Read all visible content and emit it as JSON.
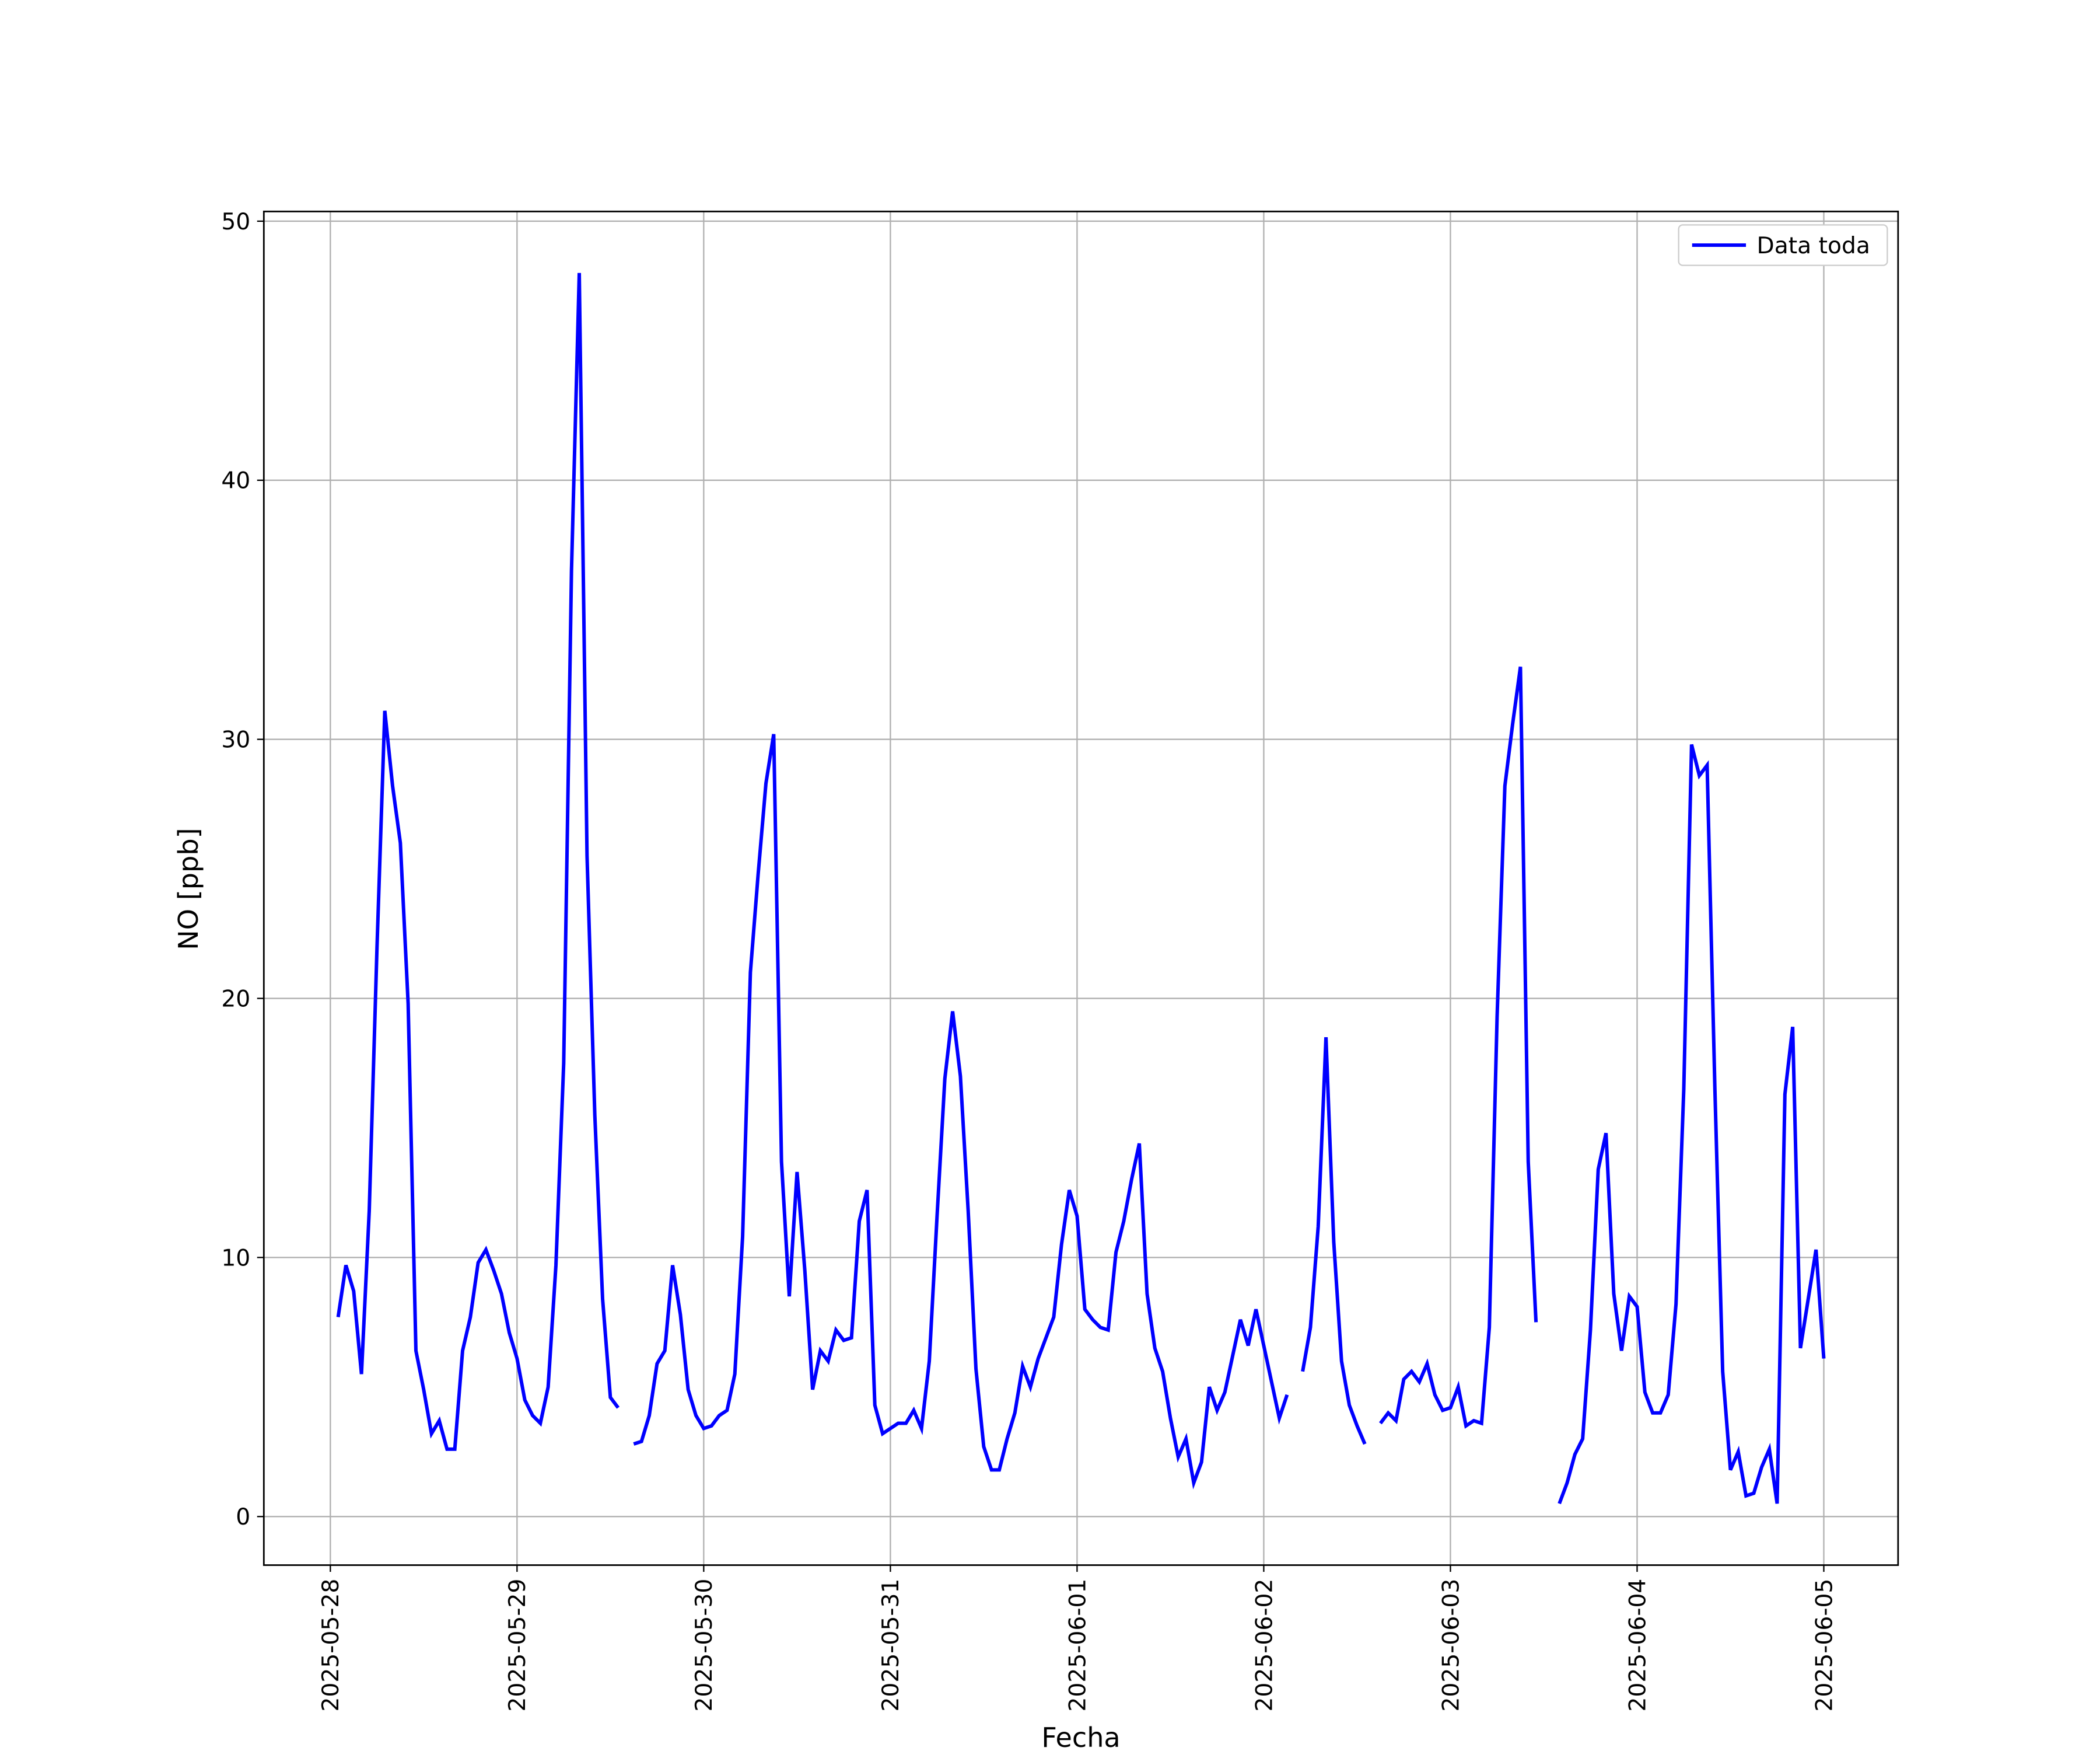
{
  "chart_data": {
    "type": "line",
    "xlabel": "Fecha",
    "ylabel": "NO [ppb]",
    "x": [
      "2025-05-28 01:00",
      "2025-05-28 02:00",
      "2025-05-28 03:00",
      "2025-05-28 04:00",
      "2025-05-28 05:00",
      "2025-05-28 06:00",
      "2025-05-28 07:00",
      "2025-05-28 08:00",
      "2025-05-28 09:00",
      "2025-05-28 10:00",
      "2025-05-28 11:00",
      "2025-05-28 12:00",
      "2025-05-28 13:00",
      "2025-05-28 14:00",
      "2025-05-28 15:00",
      "2025-05-28 16:00",
      "2025-05-28 17:00",
      "2025-05-28 18:00",
      "2025-05-28 19:00",
      "2025-05-28 20:00",
      "2025-05-28 21:00",
      "2025-05-28 22:00",
      "2025-05-28 23:00",
      "2025-05-29 00:00",
      "2025-05-29 01:00",
      "2025-05-29 02:00",
      "2025-05-29 03:00",
      "2025-05-29 04:00",
      "2025-05-29 05:00",
      "2025-05-29 06:00",
      "2025-05-29 07:00",
      "2025-05-29 08:00",
      "2025-05-29 09:00",
      "2025-05-29 10:00",
      "2025-05-29 11:00",
      "2025-05-29 12:00",
      "2025-05-29 13:00",
      "2025-05-29 14:00",
      "2025-05-29 15:00",
      "2025-05-29 16:00",
      "2025-05-29 17:00",
      "2025-05-29 18:00",
      "2025-05-29 19:00",
      "2025-05-29 20:00",
      "2025-05-29 21:00",
      "2025-05-29 22:00",
      "2025-05-29 23:00",
      "2025-05-30 00:00",
      "2025-05-30 01:00",
      "2025-05-30 02:00",
      "2025-05-30 03:00",
      "2025-05-30 04:00",
      "2025-05-30 05:00",
      "2025-05-30 06:00",
      "2025-05-30 07:00",
      "2025-05-30 08:00",
      "2025-05-30 09:00",
      "2025-05-30 10:00",
      "2025-05-30 11:00",
      "2025-05-30 12:00",
      "2025-05-30 13:00",
      "2025-05-30 14:00",
      "2025-05-30 15:00",
      "2025-05-30 16:00",
      "2025-05-30 17:00",
      "2025-05-30 18:00",
      "2025-05-30 19:00",
      "2025-05-30 20:00",
      "2025-05-30 21:00",
      "2025-05-30 22:00",
      "2025-05-30 23:00",
      "2025-05-31 00:00",
      "2025-05-31 01:00",
      "2025-05-31 02:00",
      "2025-05-31 03:00",
      "2025-05-31 04:00",
      "2025-05-31 05:00",
      "2025-05-31 06:00",
      "2025-05-31 07:00",
      "2025-05-31 08:00",
      "2025-05-31 09:00",
      "2025-05-31 10:00",
      "2025-05-31 11:00",
      "2025-05-31 12:00",
      "2025-05-31 13:00",
      "2025-05-31 14:00",
      "2025-05-31 15:00",
      "2025-05-31 16:00",
      "2025-05-31 17:00",
      "2025-05-31 18:00",
      "2025-05-31 19:00",
      "2025-05-31 20:00",
      "2025-05-31 21:00",
      "2025-05-31 22:00",
      "2025-05-31 23:00",
      "2025-06-01 00:00",
      "2025-06-01 01:00",
      "2025-06-01 02:00",
      "2025-06-01 03:00",
      "2025-06-01 04:00",
      "2025-06-01 05:00",
      "2025-06-01 06:00",
      "2025-06-01 07:00",
      "2025-06-01 08:00",
      "2025-06-01 09:00",
      "2025-06-01 10:00",
      "2025-06-01 11:00",
      "2025-06-01 12:00",
      "2025-06-01 13:00",
      "2025-06-01 14:00",
      "2025-06-01 15:00",
      "2025-06-01 16:00",
      "2025-06-01 17:00",
      "2025-06-01 18:00",
      "2025-06-01 19:00",
      "2025-06-01 20:00",
      "2025-06-01 21:00",
      "2025-06-01 22:00",
      "2025-06-01 23:00",
      "2025-06-02 00:00",
      "2025-06-02 01:00",
      "2025-06-02 02:00",
      "2025-06-02 03:00",
      "2025-06-02 04:00",
      "2025-06-02 05:00",
      "2025-06-02 06:00",
      "2025-06-02 07:00",
      "2025-06-02 08:00",
      "2025-06-02 09:00",
      "2025-06-02 10:00",
      "2025-06-02 11:00",
      "2025-06-02 12:00",
      "2025-06-02 13:00",
      "2025-06-02 14:00",
      "2025-06-02 15:00",
      "2025-06-02 16:00",
      "2025-06-02 17:00",
      "2025-06-02 18:00",
      "2025-06-02 19:00",
      "2025-06-02 20:00",
      "2025-06-02 21:00",
      "2025-06-02 22:00",
      "2025-06-02 23:00",
      "2025-06-03 00:00",
      "2025-06-03 01:00",
      "2025-06-03 02:00",
      "2025-06-03 03:00",
      "2025-06-03 04:00",
      "2025-06-03 05:00",
      "2025-06-03 06:00",
      "2025-06-03 07:00",
      "2025-06-03 08:00",
      "2025-06-03 09:00",
      "2025-06-03 10:00",
      "2025-06-03 11:00",
      "2025-06-03 12:00",
      "2025-06-03 13:00",
      "2025-06-03 14:00",
      "2025-06-03 15:00",
      "2025-06-03 16:00",
      "2025-06-03 17:00",
      "2025-06-03 18:00",
      "2025-06-03 19:00",
      "2025-06-03 20:00",
      "2025-06-03 21:00",
      "2025-06-03 22:00",
      "2025-06-03 23:00",
      "2025-06-04 00:00",
      "2025-06-04 01:00",
      "2025-06-04 02:00",
      "2025-06-04 03:00",
      "2025-06-04 04:00",
      "2025-06-04 05:00",
      "2025-06-04 06:00",
      "2025-06-04 07:00",
      "2025-06-04 08:00",
      "2025-06-04 09:00",
      "2025-06-04 10:00",
      "2025-06-04 11:00",
      "2025-06-04 12:00",
      "2025-06-04 13:00",
      "2025-06-04 14:00",
      "2025-06-04 15:00",
      "2025-06-04 16:00",
      "2025-06-04 17:00",
      "2025-06-04 18:00",
      "2025-06-04 19:00",
      "2025-06-04 20:00",
      "2025-06-04 21:00",
      "2025-06-04 22:00",
      "2025-06-04 23:00",
      "2025-06-05 00:00"
    ],
    "series": [
      {
        "name": "Data toda",
        "color": "#0000ff",
        "values": [
          7.7,
          9.7,
          8.7,
          5.5,
          11.8,
          22,
          31.1,
          28.2,
          26,
          19.8,
          6.4,
          4.9,
          3.2,
          3.7,
          2.6,
          2.6,
          6.4,
          7.7,
          9.8,
          10.3,
          9.5,
          8.6,
          7.1,
          6.1,
          4.5,
          3.9,
          3.6,
          5.0,
          9.7,
          17.5,
          36.5,
          48,
          25.5,
          15.5,
          8.4,
          4.6,
          4.2,
          null,
          2.8,
          2.9,
          3.9,
          5.9,
          6.4,
          9.7,
          7.8,
          4.9,
          3.9,
          3.4,
          3.5,
          3.9,
          4.1,
          5.5,
          10.8,
          21,
          24.8,
          28.3,
          30.2,
          13.7,
          8.5,
          13.3,
          9.5,
          4.9,
          6.4,
          6.0,
          7.2,
          6.8,
          6.9,
          11.4,
          12.6,
          4.3,
          3.2,
          3.4,
          3.6,
          3.6,
          4.1,
          3.4,
          6.0,
          11.6,
          16.9,
          19.5,
          17.0,
          11.8,
          5.7,
          2.7,
          1.8,
          1.8,
          3.0,
          4.0,
          5.8,
          5.0,
          6.1,
          6.9,
          7.7,
          10.5,
          12.6,
          11.6,
          8.0,
          7.6,
          7.3,
          7.2,
          10.2,
          11.4,
          13.0,
          14.4,
          8.6,
          6.5,
          5.6,
          3.8,
          2.3,
          3.0,
          1.3,
          2.1,
          5.0,
          4.1,
          4.8,
          6.2,
          7.6,
          6.6,
          8.0,
          6.6,
          5.2,
          3.8,
          4.7,
          null,
          5.6,
          7.3,
          11.2,
          18.5,
          10.6,
          6.0,
          4.3,
          3.5,
          2.8,
          null,
          3.6,
          4.0,
          3.7,
          5.3,
          5.6,
          5.2,
          5.9,
          4.7,
          4.1,
          4.2,
          5.0,
          3.5,
          3.7,
          3.6,
          7.3,
          19.3,
          28.2,
          30.6,
          32.8,
          13.7,
          7.5,
          null,
          null,
          0.5,
          1.3,
          2.4,
          3.0,
          7.2,
          13.4,
          14.8,
          8.6,
          6.4,
          8.5,
          8.1,
          4.8,
          4.0,
          4.0,
          4.7,
          8.2,
          16.5,
          29.8,
          28.6,
          29.0,
          16.5,
          5.6,
          1.8,
          2.5,
          0.8,
          0.9,
          1.9,
          2.6,
          0.5,
          16.3,
          18.9,
          6.5,
          8.4,
          10.3,
          6.1
        ]
      }
    ],
    "xlim": [
      "2025-05-27 15:27",
      "2025-06-05 09:33"
    ],
    "xticks": [
      "2025-05-28",
      "2025-05-29",
      "2025-05-30",
      "2025-05-31",
      "2025-06-01",
      "2025-06-02",
      "2025-06-03",
      "2025-06-04",
      "2025-06-05"
    ],
    "ylim": [
      -1.875,
      50.375
    ],
    "yticks": [
      0,
      10,
      20,
      30,
      40,
      50
    ],
    "grid": true,
    "legend": "upper right"
  }
}
